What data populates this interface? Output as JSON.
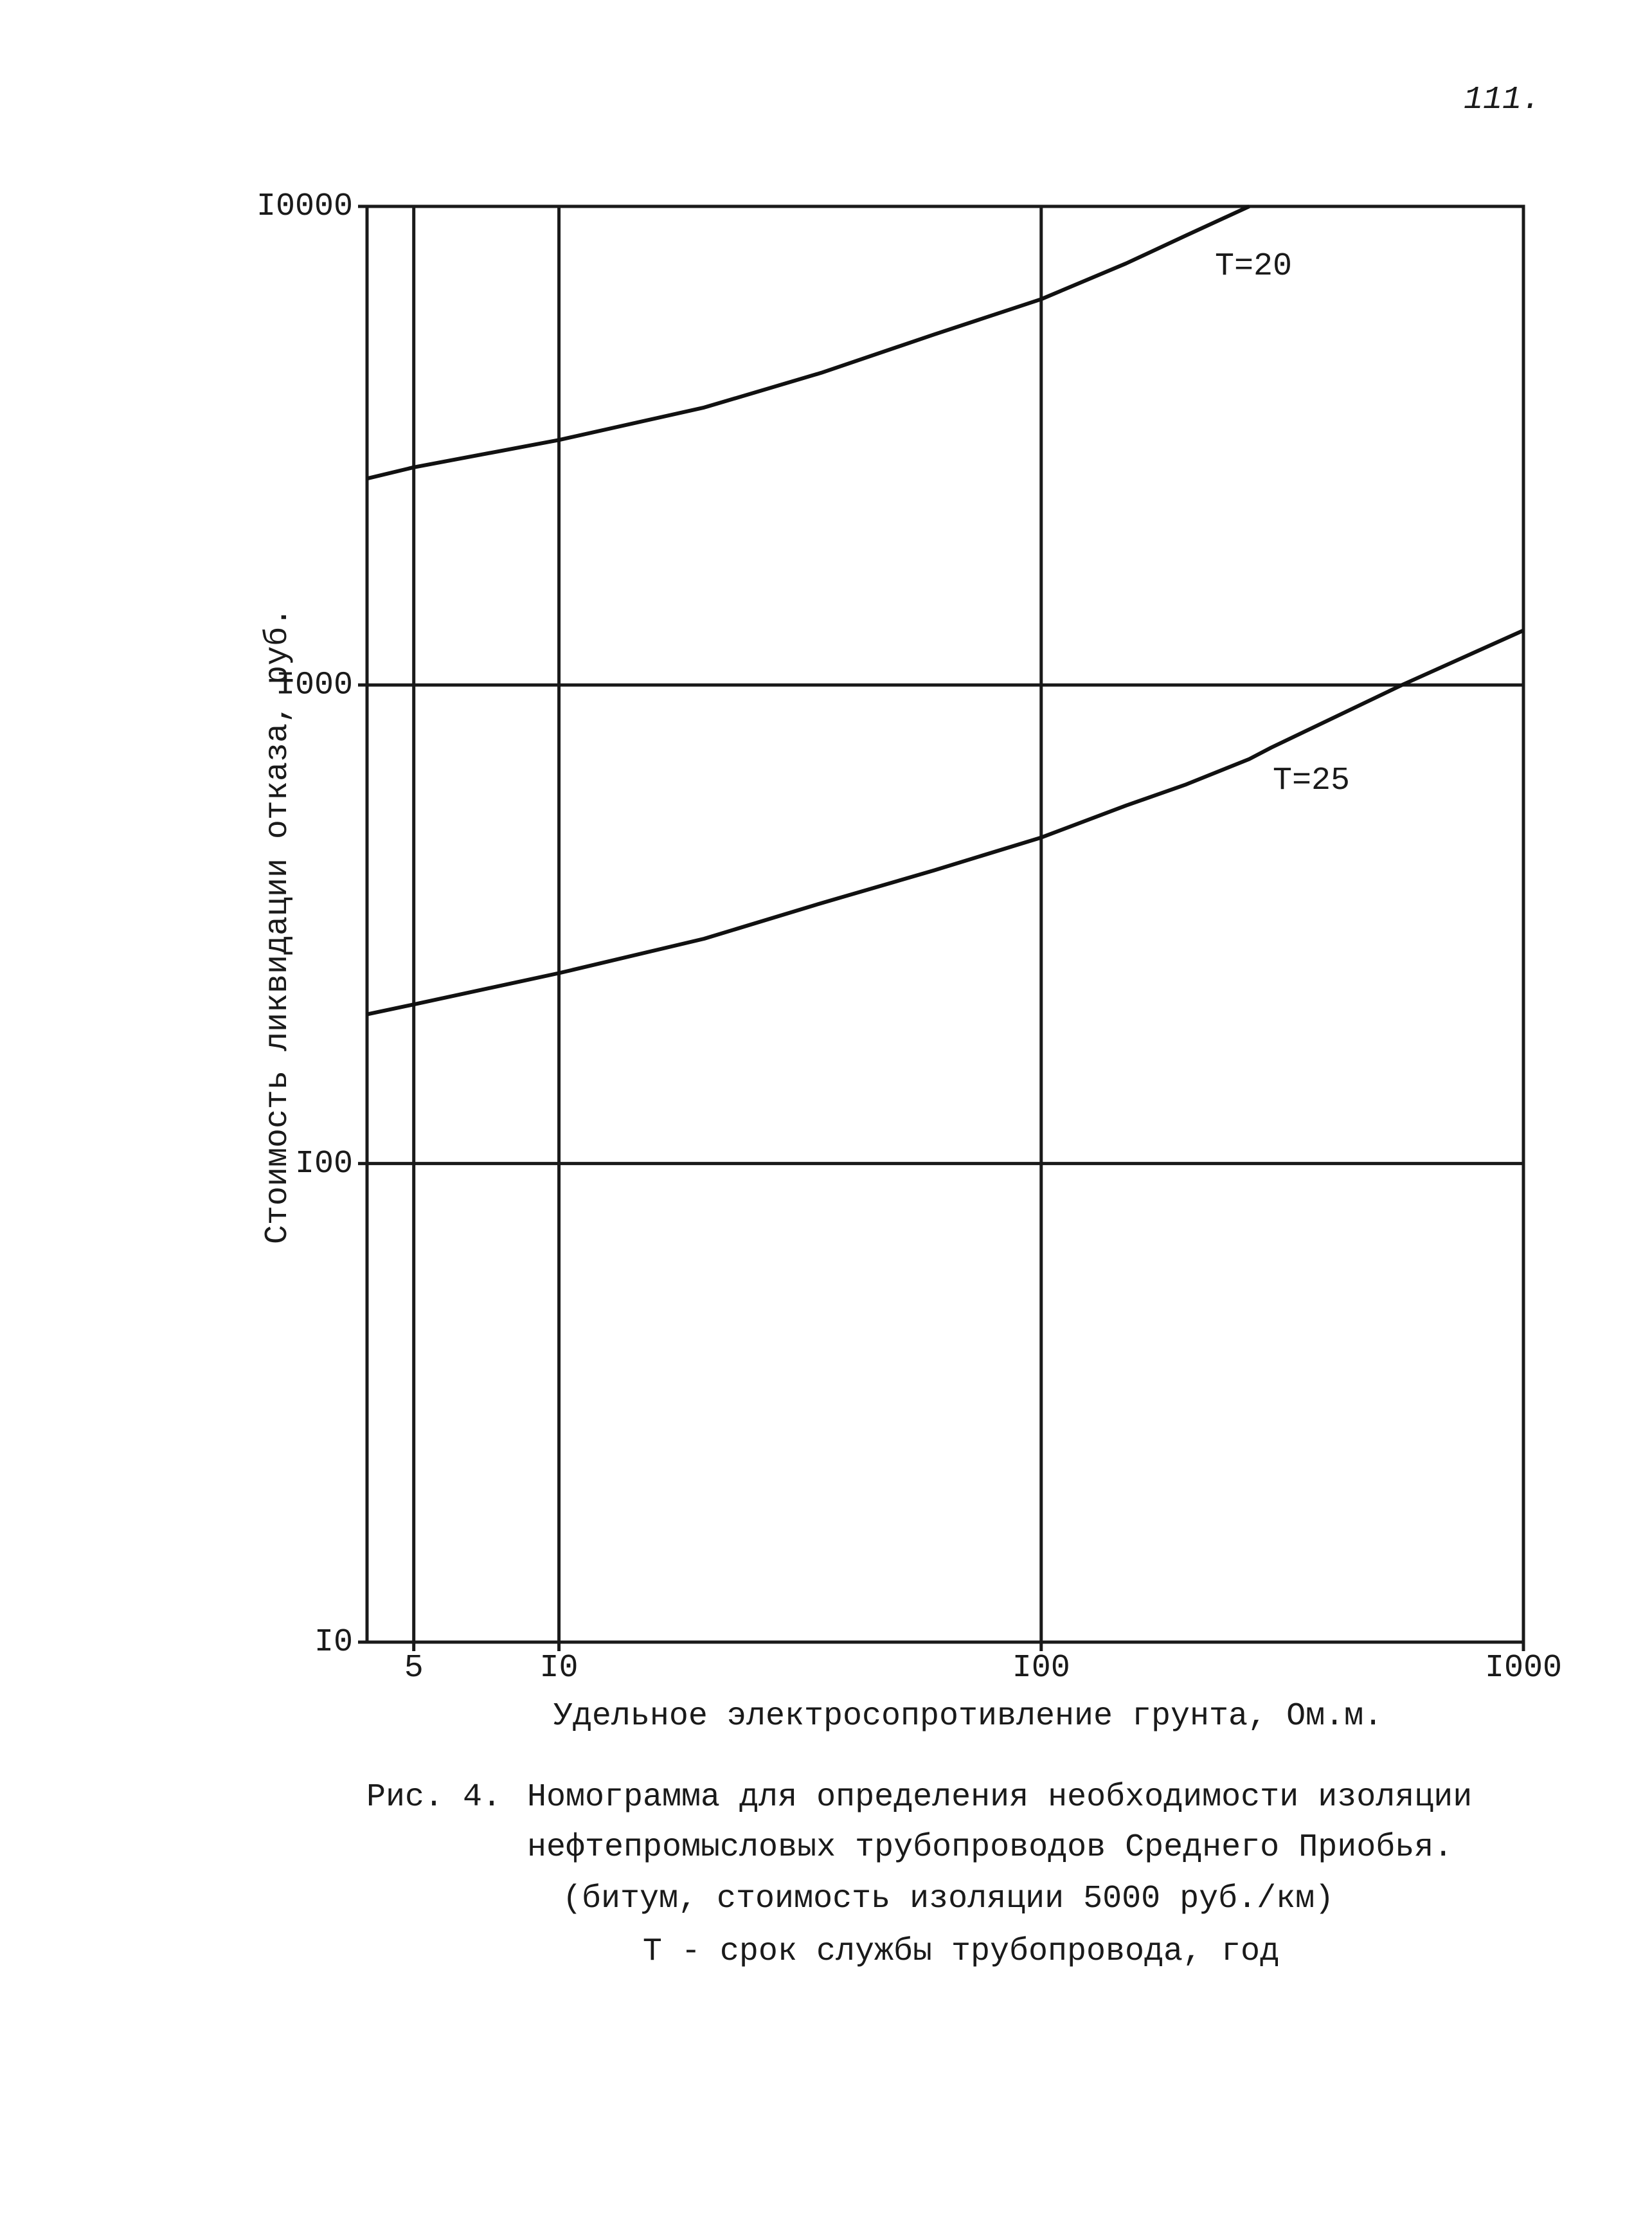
{
  "page_number": "111.",
  "chart_data": {
    "type": "line",
    "x_label": "Удельное электросопротивление грунта, Ом.м.",
    "y_label": "Стоимость ликвидации отказа, руб.",
    "x": [
      4,
      5,
      10,
      20,
      35,
      60,
      100,
      150,
      200,
      270,
      300,
      560,
      1000
    ],
    "series": [
      {
        "name": "T=20",
        "color": "#111111",
        "values": [
          2700,
          2850,
          3250,
          3800,
          4490,
          5400,
          6400,
          7600,
          8700,
          10000,
          null,
          null,
          null
        ]
      },
      {
        "name": "T=25",
        "color": "#111111",
        "values": [
          205,
          215,
          250,
          295,
          350,
          410,
          480,
          560,
          620,
          700,
          740,
          1000,
          1300
        ]
      }
    ],
    "xscale": "log",
    "yscale": "log",
    "xlim": [
      4,
      1000
    ],
    "ylim": [
      10,
      10000
    ],
    "xticks": [
      5,
      {
        "value": 10,
        "label": "I0"
      },
      {
        "value": 100,
        "label": "I00"
      },
      {
        "value": 1000,
        "label": "I000"
      }
    ],
    "yticks": [
      {
        "value": 10,
        "label": "I0"
      },
      {
        "value": 100,
        "label": "I00"
      },
      {
        "value": 1000,
        "label": "I000"
      },
      {
        "value": 10000,
        "label": "I0000"
      }
    ],
    "grid": true,
    "caption": [
      "Рис. 4.",
      "Номограмма для определения необходимости изоляции",
      "нефтепромысловых трубопроводов Среднего Приобья.",
      "(битум, стоимость изоляции 5000 руб./км)",
      "Т - срок службы трубопровода, год"
    ]
  }
}
